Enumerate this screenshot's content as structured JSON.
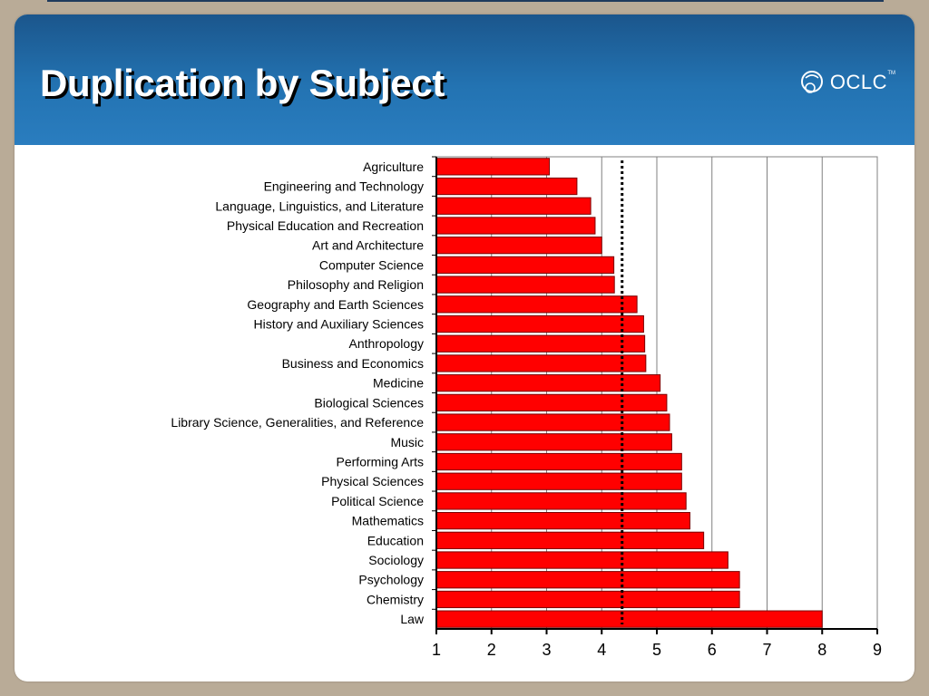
{
  "slide": {
    "title": "Duplication by Subject",
    "logo_text": "OCLC",
    "logo_mark": "TM"
  },
  "colors": {
    "bar_fill": "#ff0000",
    "bar_stroke": "#7a0000",
    "header_blue": "#2373b2",
    "background_tan": "#b9ab97"
  },
  "chart_data": {
    "type": "bar",
    "orientation": "horizontal",
    "title": "",
    "xlabel": "",
    "ylabel": "",
    "xlim": [
      1,
      9
    ],
    "xticks": [
      1,
      2,
      3,
      4,
      5,
      6,
      7,
      8,
      9
    ],
    "grid": "vertical",
    "legend": "none",
    "reference_line": {
      "value": 4.37,
      "style": "dotted"
    },
    "categories": [
      "Agriculture",
      "Engineering and Technology",
      "Language, Linguistics, and Literature",
      "Physical Education and Recreation",
      "Art and Architecture",
      "Computer Science",
      "Philosophy and Religion",
      "Geography and Earth Sciences",
      "History and Auxiliary Sciences",
      "Anthropology",
      "Business and Economics",
      "Medicine",
      "Biological Sciences",
      "Library Science, Generalities, and Reference",
      "Music",
      "Performing Arts",
      "Physical Sciences",
      "Political Science",
      "Mathematics",
      "Education",
      "Sociology",
      "Psychology",
      "Chemistry",
      "Law"
    ],
    "values": [
      3.05,
      3.55,
      3.8,
      3.88,
      4.0,
      4.22,
      4.23,
      4.64,
      4.76,
      4.78,
      4.8,
      5.06,
      5.18,
      5.23,
      5.27,
      5.45,
      5.45,
      5.53,
      5.6,
      5.85,
      6.29,
      6.5,
      6.5,
      8.0
    ]
  }
}
